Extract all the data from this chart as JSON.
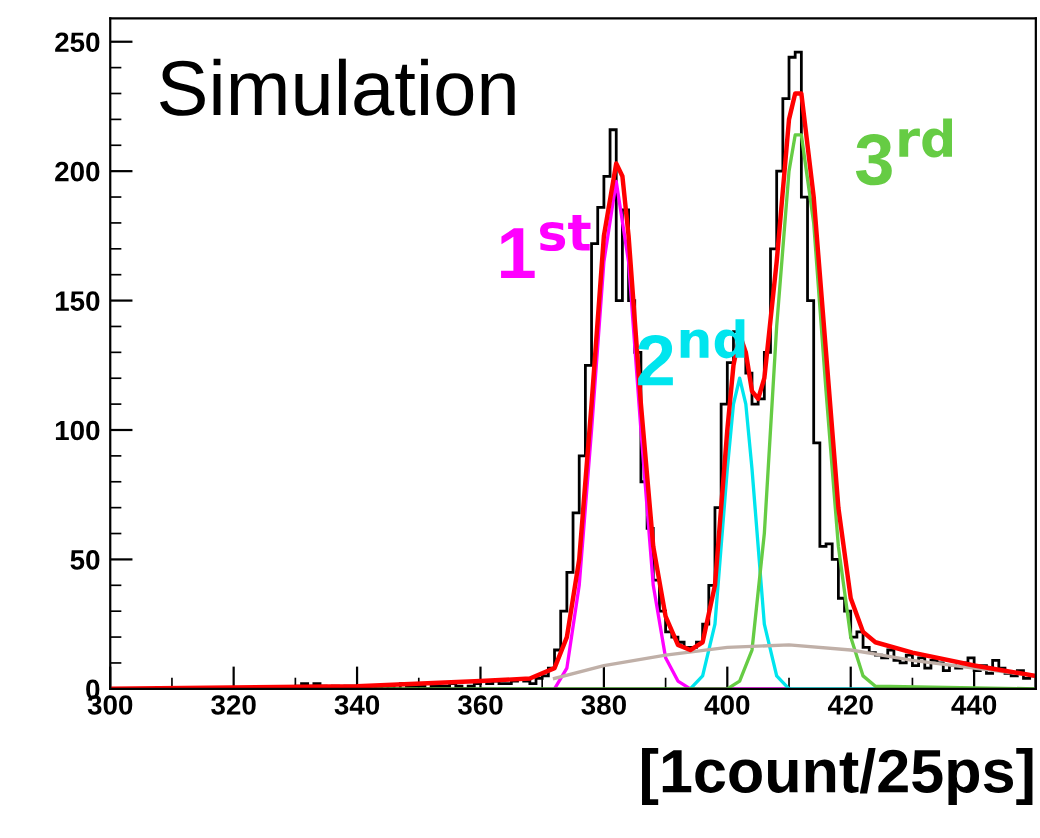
{
  "chart_data": {
    "type": "histogram",
    "xlabel": "[1count/25ps]",
    "xlim": [
      300,
      450
    ],
    "ylim": [
      0,
      259
    ],
    "xticks": [
      300,
      320,
      340,
      360,
      380,
      400,
      420,
      440
    ],
    "yticks": [
      0,
      50,
      100,
      150,
      200,
      250
    ],
    "grid": false,
    "legend": false,
    "annotations": [
      "Simulation",
      "1$^{st}$",
      "2$^{nd}$",
      "3$^{rd}$"
    ],
    "series": [
      {
        "color": "#000000",
        "bins": [
          300,
          310,
          320,
          330,
          331,
          332,
          333,
          334,
          335,
          336,
          337,
          338,
          339,
          340,
          341,
          342,
          343,
          344,
          345,
          346,
          347,
          348,
          349,
          350,
          351,
          352,
          353,
          354,
          355,
          356,
          357,
          358,
          359,
          360,
          361,
          362,
          363,
          364,
          365,
          366,
          367,
          368,
          369,
          370,
          371,
          372,
          373,
          374,
          375,
          376,
          377,
          378,
          379,
          380,
          381,
          382,
          383,
          384,
          385,
          386,
          387,
          388,
          389,
          390,
          391,
          392,
          393,
          394,
          395,
          396,
          397,
          398,
          399,
          400,
          401,
          402,
          403,
          404,
          405,
          406,
          407,
          408,
          409,
          410,
          411,
          412,
          413,
          414,
          415,
          416,
          417,
          418,
          419,
          420,
          421,
          422,
          423,
          424,
          425,
          426,
          427,
          428,
          429,
          430,
          431,
          432,
          433,
          434,
          435,
          436,
          437,
          438,
          439,
          440,
          441,
          442,
          443,
          444,
          445,
          446,
          447,
          448,
          449,
          450
        ],
        "values": [
          0,
          0,
          0,
          1,
          2,
          1,
          2,
          1,
          0,
          1,
          0,
          1,
          1,
          0,
          1,
          0,
          1,
          0,
          1,
          0,
          2,
          1,
          1,
          1,
          0,
          1,
          1,
          1,
          2,
          1,
          0,
          1,
          2,
          3,
          2,
          3,
          2,
          2,
          3,
          4,
          3,
          2,
          4,
          5,
          8,
          15,
          30,
          45,
          68,
          90,
          125,
          172,
          186,
          198,
          216,
          150,
          185,
          150,
          130,
          80,
          62,
          42,
          30,
          22,
          20,
          18,
          16,
          16,
          18,
          25,
          40,
          70,
          110,
          126,
          138,
          130,
          122,
          110,
          112,
          130,
          170,
          200,
          228,
          244,
          246,
          190,
          150,
          95,
          55,
          56,
          50,
          35,
          30,
          20,
          22,
          16,
          14,
          13,
          12,
          15,
          11,
          10,
          13,
          9,
          12,
          8,
          11,
          10,
          7,
          9,
          8,
          10,
          12,
          7,
          9,
          6,
          11,
          8,
          6,
          5,
          7,
          4,
          5
        ]
      },
      {
        "type": "line",
        "color": "#ff00ff",
        "x": [
          372,
          374,
          376,
          378,
          380,
          382,
          384,
          386,
          388,
          390,
          392,
          394,
          410
        ],
        "values": [
          0,
          8,
          40,
          100,
          165,
          196,
          165,
          100,
          40,
          12,
          3,
          0,
          0
        ]
      },
      {
        "type": "line",
        "color": "#00e5ee",
        "x": [
          394,
          396,
          398,
          400,
          401,
          402,
          403,
          404,
          406,
          408,
          410,
          424
        ],
        "values": [
          0,
          5,
          25,
          85,
          110,
          120,
          110,
          85,
          25,
          5,
          0,
          0
        ]
      },
      {
        "type": "line",
        "color": "#66cc44",
        "x": [
          338,
          400,
          402,
          404,
          406,
          408,
          410,
          411,
          412,
          414,
          416,
          418,
          420,
          422,
          424,
          450
        ],
        "values": [
          0,
          0,
          3,
          15,
          60,
          140,
          200,
          214,
          214,
          180,
          115,
          55,
          20,
          5,
          1,
          0
        ]
      },
      {
        "type": "line",
        "color": "#c0b0a8",
        "x": [
          372,
          380,
          390,
          400,
          410,
          420,
          425,
          430,
          440,
          450
        ],
        "values": [
          4,
          9,
          13,
          16,
          17,
          15,
          13,
          11,
          8,
          5
        ]
      },
      {
        "type": "line",
        "color": "#ff0000",
        "x": [
          300,
          340,
          360,
          368,
          372,
          374,
          376,
          378,
          380,
          382,
          383,
          384,
          386,
          388,
          390,
          392,
          394,
          396,
          398,
          400,
          401,
          402,
          403,
          404,
          405,
          406,
          408,
          410,
          411,
          412,
          414,
          416,
          418,
          420,
          422,
          424,
          430,
          440,
          450
        ],
        "values": [
          0,
          1,
          3,
          4,
          8,
          20,
          50,
          110,
          175,
          203,
          198,
          175,
          110,
          55,
          28,
          17,
          15,
          18,
          40,
          100,
          125,
          137,
          130,
          115,
          112,
          120,
          165,
          220,
          230,
          230,
          190,
          130,
          70,
          35,
          22,
          18,
          14,
          9,
          5
        ]
      }
    ]
  }
}
